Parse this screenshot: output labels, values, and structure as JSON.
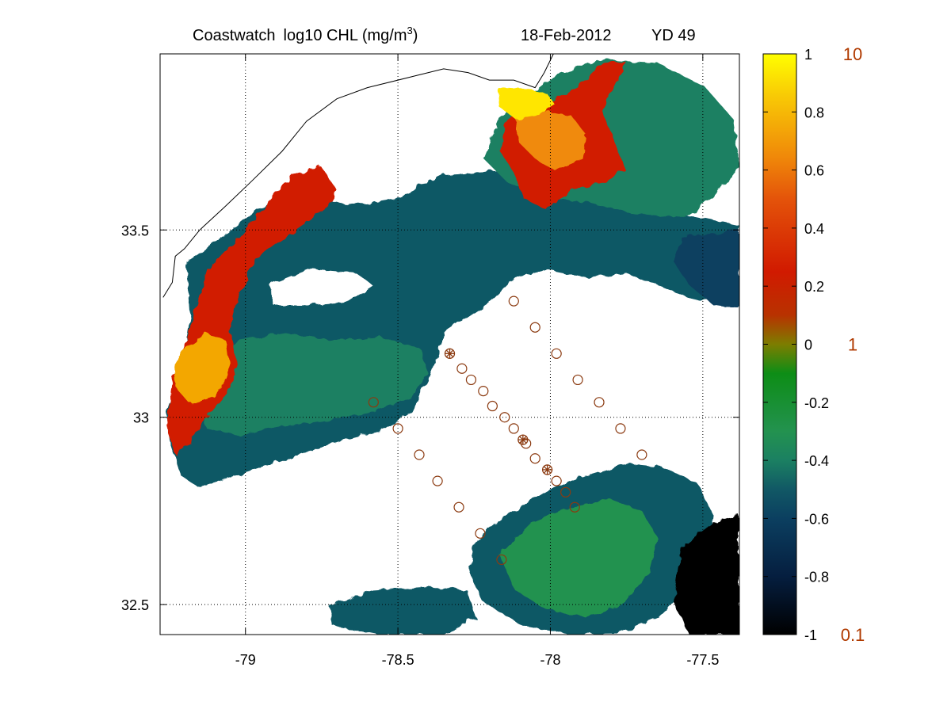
{
  "title": {
    "product": "Coastwatch",
    "variable_prefix": "log10  CHL (mg/m",
    "unit_superscript": "3",
    "variable_suffix": ")",
    "date": "18-Feb-2012",
    "yearday": "YD 49"
  },
  "map": {
    "lon_range": [
      -79.28,
      -77.38
    ],
    "lat_range": [
      32.42,
      33.97
    ],
    "lon_ticks": [
      {
        "value": -79.0,
        "label": "-79"
      },
      {
        "value": -78.5,
        "label": "-78.5"
      },
      {
        "value": -78.0,
        "label": "-78"
      },
      {
        "value": -77.5,
        "label": "-77.5"
      }
    ],
    "lat_ticks": [
      {
        "value": 33.5,
        "label": "33.5"
      },
      {
        "value": 33.0,
        "label": "33"
      },
      {
        "value": 32.5,
        "label": "32.5"
      }
    ],
    "grid": "dotted",
    "background": "white (no data / land)"
  },
  "colorbar": {
    "range": [
      -1,
      1
    ],
    "ticks": [
      {
        "value": 1,
        "label": "1"
      },
      {
        "value": 0.8,
        "label": "0.8"
      },
      {
        "value": 0.6,
        "label": "0.6"
      },
      {
        "value": 0.4,
        "label": "0.4"
      },
      {
        "value": 0.2,
        "label": "0.2"
      },
      {
        "value": 0,
        "label": "0"
      },
      {
        "value": -0.2,
        "label": "-0.2"
      },
      {
        "value": -0.4,
        "label": "-0.4"
      },
      {
        "value": -0.6,
        "label": "-0.6"
      },
      {
        "value": -0.8,
        "label": "-0.8"
      },
      {
        "value": -1,
        "label": "-1"
      }
    ],
    "linear_labels": [
      {
        "value": 1,
        "label": "10"
      },
      {
        "value": 0,
        "label": "1"
      },
      {
        "value": -1,
        "label": "0.1"
      }
    ],
    "colormap": [
      [
        -1.0,
        "#000000"
      ],
      [
        -0.8,
        "#051e3f"
      ],
      [
        -0.6,
        "#0b3f60"
      ],
      [
        -0.5,
        "#115865"
      ],
      [
        -0.4,
        "#1b8062"
      ],
      [
        -0.3,
        "#23924f"
      ],
      [
        -0.1,
        "#0d8d16"
      ],
      [
        0.0,
        "#7d7d00"
      ],
      [
        0.1,
        "#b83200"
      ],
      [
        0.25,
        "#d11a00"
      ],
      [
        0.5,
        "#e4530a"
      ],
      [
        0.65,
        "#f08a09"
      ],
      [
        0.85,
        "#f8c805"
      ],
      [
        1.0,
        "#ffff00"
      ]
    ]
  },
  "coastline": [
    [
      -79.27,
      33.32
    ],
    [
      -79.24,
      33.36
    ],
    [
      -79.23,
      33.43
    ],
    [
      -79.2,
      33.45
    ],
    [
      -79.15,
      33.5
    ],
    [
      -79.07,
      33.56
    ],
    [
      -78.98,
      33.63
    ],
    [
      -78.88,
      33.71
    ],
    [
      -78.8,
      33.79
    ],
    [
      -78.7,
      33.85
    ],
    [
      -78.6,
      33.88
    ],
    [
      -78.45,
      33.91
    ],
    [
      -78.35,
      33.93
    ],
    [
      -78.27,
      33.92
    ],
    [
      -78.2,
      33.9
    ],
    [
      -78.12,
      33.9
    ],
    [
      -78.05,
      33.88
    ],
    [
      -78.02,
      33.92
    ],
    [
      -77.99,
      33.97
    ]
  ],
  "stations": [
    {
      "lon": -78.12,
      "lat": 33.31,
      "marker": "circle"
    },
    {
      "lon": -78.05,
      "lat": 33.24,
      "marker": "circle"
    },
    {
      "lon": -77.98,
      "lat": 33.17,
      "marker": "circle"
    },
    {
      "lon": -77.91,
      "lat": 33.1,
      "marker": "circle"
    },
    {
      "lon": -77.84,
      "lat": 33.04,
      "marker": "circle"
    },
    {
      "lon": -77.77,
      "lat": 32.97,
      "marker": "circle"
    },
    {
      "lon": -77.7,
      "lat": 32.9,
      "marker": "circle"
    },
    {
      "lon": -78.33,
      "lat": 33.17,
      "marker": "star"
    },
    {
      "lon": -78.29,
      "lat": 33.13,
      "marker": "circle"
    },
    {
      "lon": -78.26,
      "lat": 33.1,
      "marker": "circle"
    },
    {
      "lon": -78.22,
      "lat": 33.07,
      "marker": "circle"
    },
    {
      "lon": -78.19,
      "lat": 33.03,
      "marker": "circle"
    },
    {
      "lon": -78.15,
      "lat": 33.0,
      "marker": "circle"
    },
    {
      "lon": -78.12,
      "lat": 32.97,
      "marker": "circle"
    },
    {
      "lon": -78.09,
      "lat": 32.94,
      "marker": "star"
    },
    {
      "lon": -78.08,
      "lat": 32.93,
      "marker": "circle"
    },
    {
      "lon": -78.05,
      "lat": 32.89,
      "marker": "circle"
    },
    {
      "lon": -78.01,
      "lat": 32.86,
      "marker": "star"
    },
    {
      "lon": -77.98,
      "lat": 32.83,
      "marker": "circle"
    },
    {
      "lon": -77.95,
      "lat": 32.8,
      "marker": "circle"
    },
    {
      "lon": -77.92,
      "lat": 32.76,
      "marker": "circle"
    },
    {
      "lon": -78.58,
      "lat": 33.04,
      "marker": "circle"
    },
    {
      "lon": -78.5,
      "lat": 32.97,
      "marker": "circle"
    },
    {
      "lon": -78.43,
      "lat": 32.9,
      "marker": "circle"
    },
    {
      "lon": -78.37,
      "lat": 32.83,
      "marker": "circle"
    },
    {
      "lon": -78.3,
      "lat": 32.76,
      "marker": "circle"
    },
    {
      "lon": -78.23,
      "lat": 32.69,
      "marker": "circle"
    },
    {
      "lon": -78.16,
      "lat": 32.62,
      "marker": "circle"
    }
  ],
  "marker_color": "#8b3a10"
}
